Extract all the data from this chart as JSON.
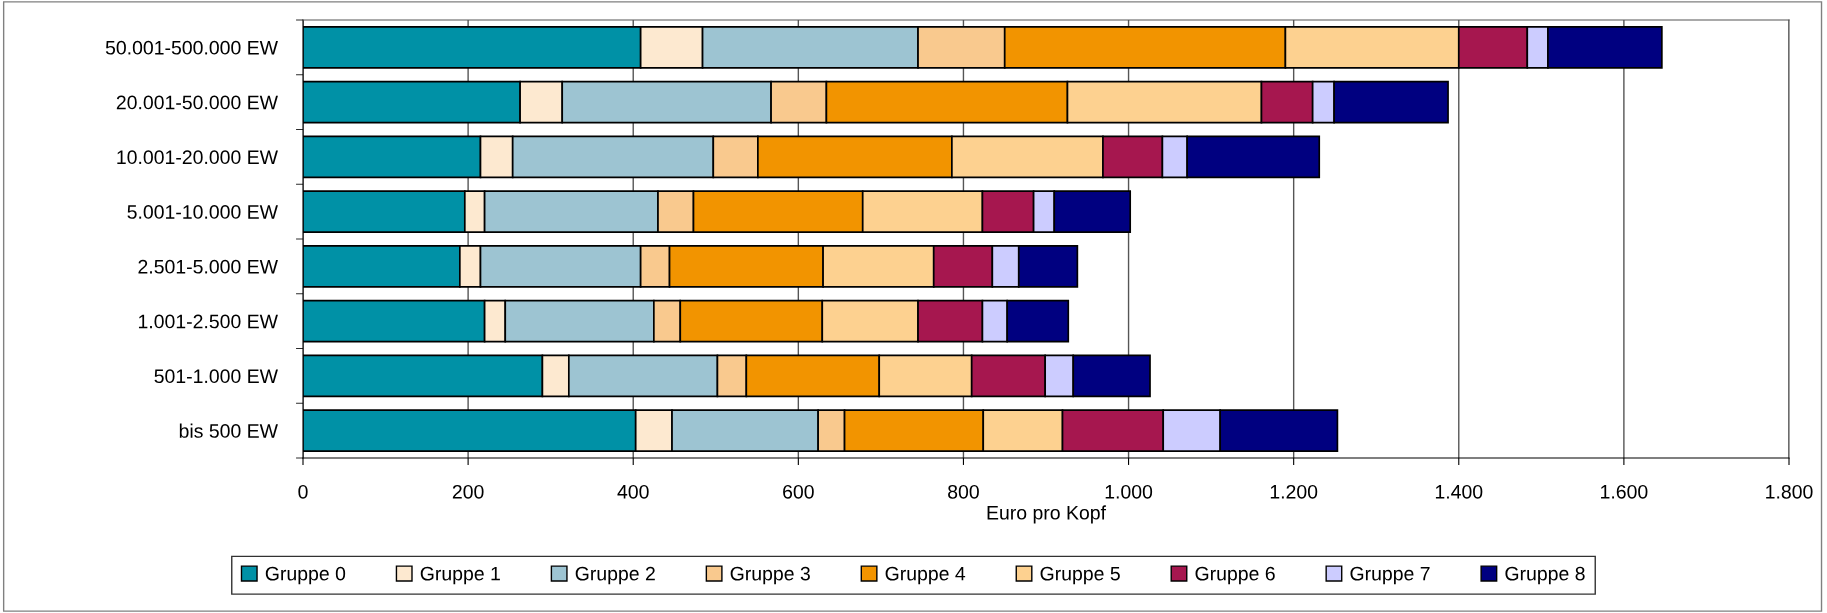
{
  "chart_data": {
    "type": "bar",
    "orientation": "horizontal",
    "stacked": true,
    "xlabel": "Euro pro Kopf",
    "categories": [
      "50.001-500.000 EW",
      "20.001-50.000 EW",
      "10.001-20.000 EW",
      "5.001-10.000 EW",
      "2.501-5.000 EW",
      "1.001-2.500 EW",
      "501-1.000 EW",
      "bis 500 EW"
    ],
    "series": [
      {
        "name": "Gruppe 0",
        "color": "#0091a6",
        "values": [
          409,
          263,
          215,
          196,
          190,
          220,
          290,
          403
        ]
      },
      {
        "name": "Gruppe 1",
        "color": "#fde9d0",
        "values": [
          75,
          51,
          39,
          24,
          25,
          25,
          32,
          44
        ]
      },
      {
        "name": "Gruppe 2",
        "color": "#9dc4d2",
        "values": [
          261,
          253,
          243,
          210,
          194,
          180,
          180,
          177
        ]
      },
      {
        "name": "Gruppe 3",
        "color": "#f9c98e",
        "values": [
          105,
          67,
          54,
          43,
          35,
          32,
          35,
          32
        ]
      },
      {
        "name": "Gruppe 4",
        "color": "#f29400",
        "values": [
          340,
          292,
          235,
          205,
          186,
          172,
          161,
          168
        ]
      },
      {
        "name": "Gruppe 5",
        "color": "#fdd190",
        "values": [
          210,
          235,
          183,
          145,
          134,
          116,
          112,
          96
        ]
      },
      {
        "name": "Gruppe 6",
        "color": "#a6174f",
        "values": [
          83,
          62,
          72,
          62,
          71,
          78,
          89,
          122
        ]
      },
      {
        "name": "Gruppe 7",
        "color": "#ccccff",
        "values": [
          25,
          26,
          30,
          25,
          32,
          30,
          34,
          69
        ]
      },
      {
        "name": "Gruppe 8",
        "color": "#000080",
        "values": [
          138,
          138,
          160,
          92,
          71,
          74,
          93,
          142
        ]
      }
    ],
    "xlim": [
      0,
      1800
    ],
    "xticks": [
      0,
      200,
      400,
      600,
      800,
      {
        "value": 1000,
        "label": "1.000"
      },
      {
        "value": 1200,
        "label": "1.200"
      },
      {
        "value": 1400,
        "label": "1.400"
      },
      {
        "value": 1600,
        "label": "1.600"
      },
      {
        "value": 1800,
        "label": "1.800"
      }
    ],
    "grid": "x",
    "legend": "bottom"
  }
}
